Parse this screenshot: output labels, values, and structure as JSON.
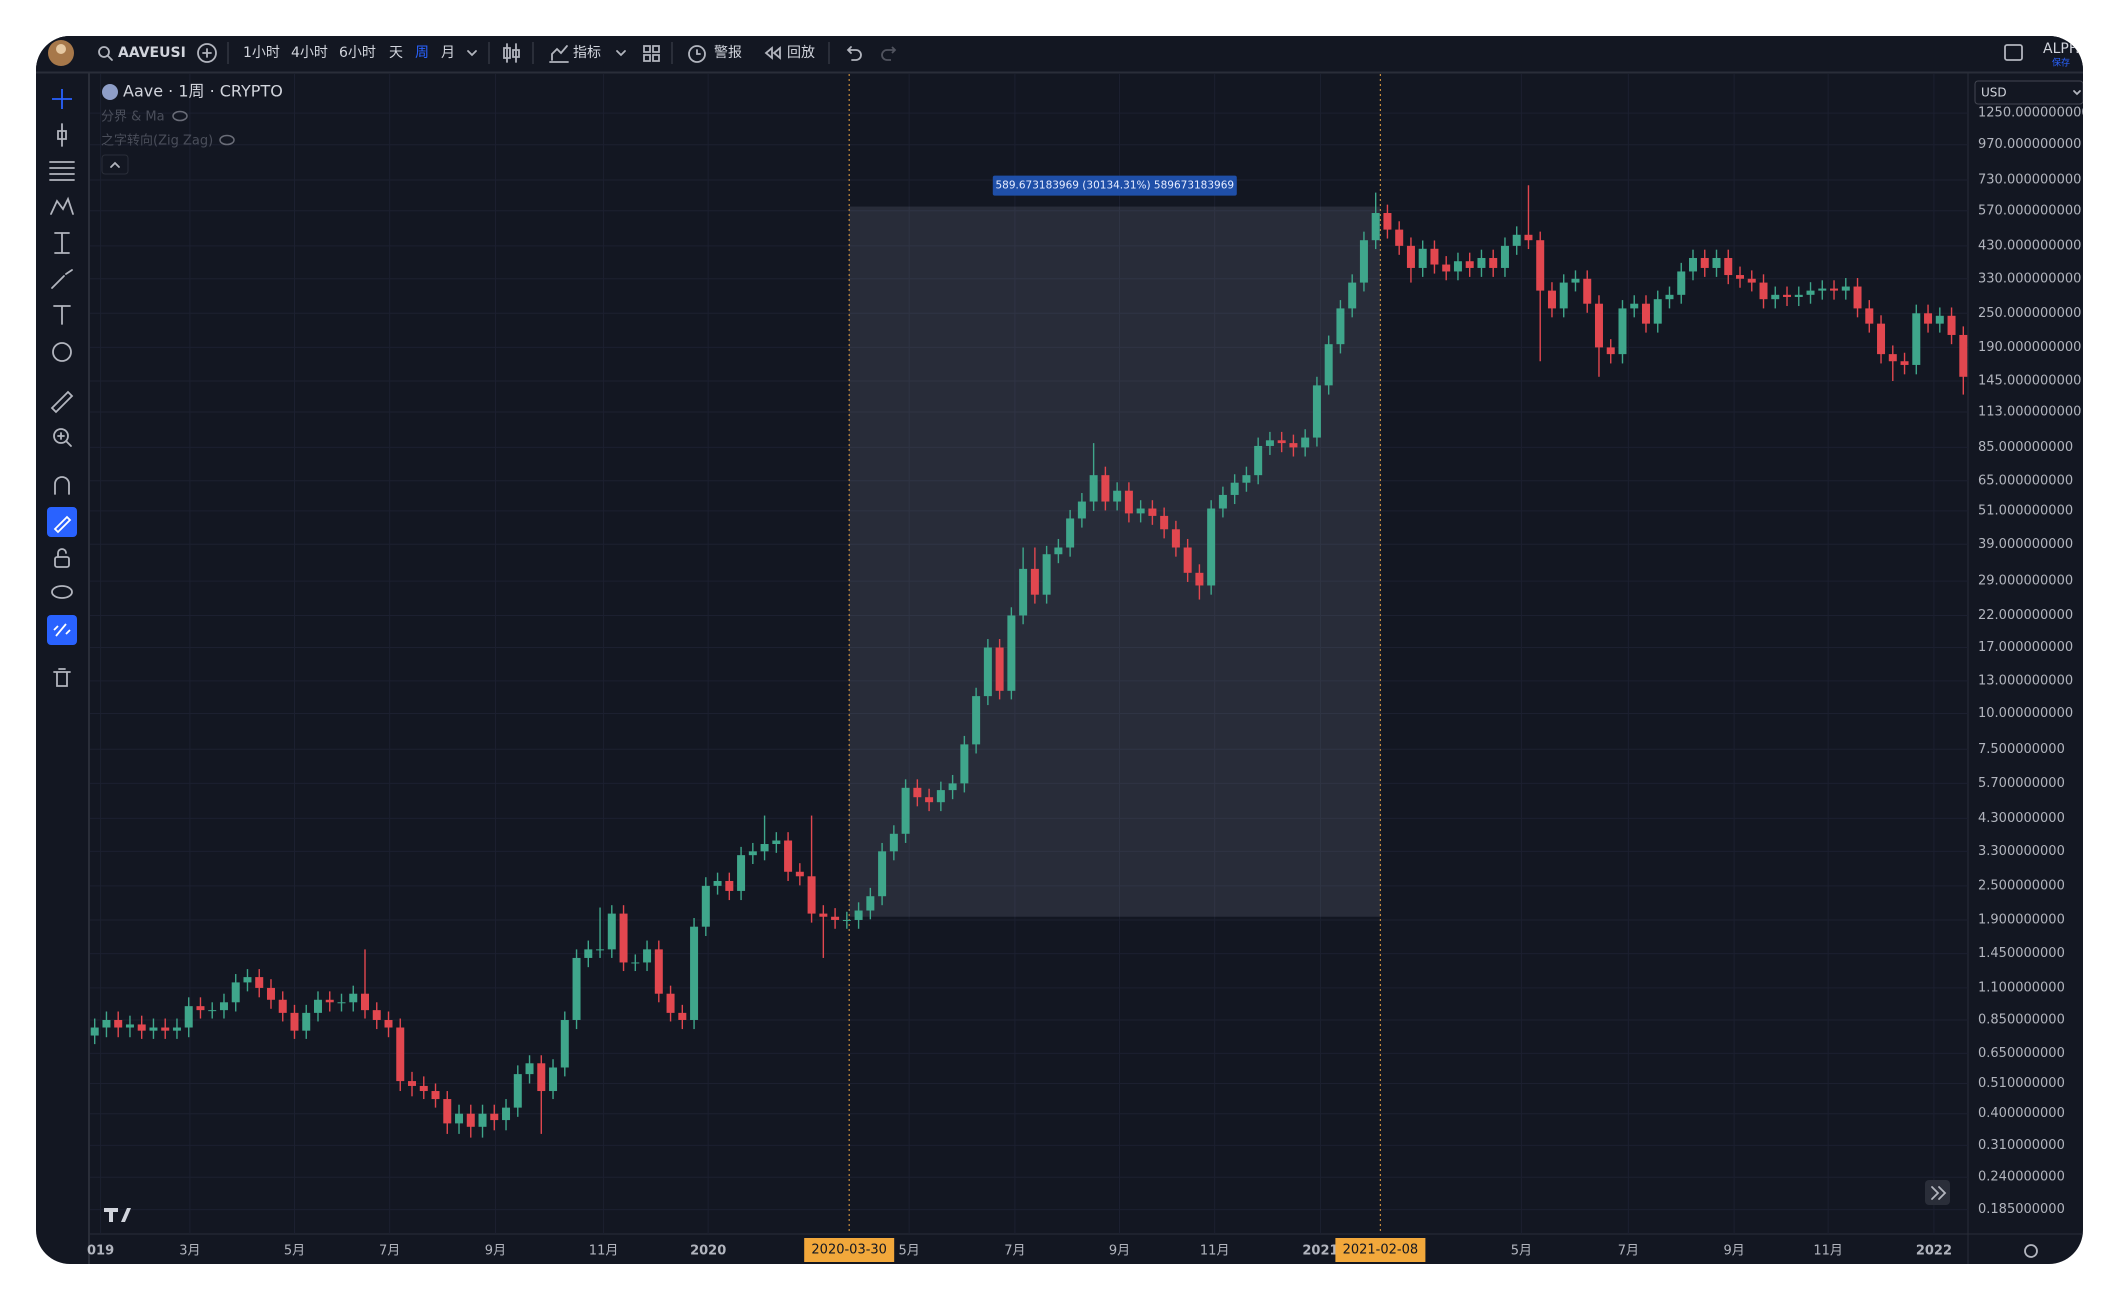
{
  "toolbar": {
    "symbol": "AAVEUSI",
    "intervals": [
      "1小时",
      "4小时",
      "6小时",
      "天",
      "周",
      "月"
    ],
    "indicators": "指标",
    "alert": "警报",
    "replay": "回放",
    "account": "ALPH",
    "save": "保存"
  },
  "legend": {
    "title": "Aave · 1周 · CRYPTO",
    "indicators": [
      "分界 & Ma",
      "之字转向(Zig Zag)"
    ]
  },
  "currency": "USD",
  "chart_data": {
    "type": "candlestick",
    "log_scale": true,
    "grid": true,
    "colors": {
      "up": "#3fa68b",
      "down": "#e2474f"
    },
    "xlim": [
      -0.4,
      159.4
    ],
    "xticks": [
      {
        "value": 0.5,
        "label": "019"
      },
      {
        "value": 8.1,
        "label": "3月"
      },
      {
        "value": 17.0,
        "label": "5月"
      },
      {
        "value": 25.1,
        "label": "7月"
      },
      {
        "value": 34.1,
        "label": "9月"
      },
      {
        "value": 43.3,
        "label": "11月"
      },
      {
        "value": 52.2,
        "label": "2020"
      },
      {
        "value": 69.3,
        "label": "5月"
      },
      {
        "value": 78.3,
        "label": "7月"
      },
      {
        "value": 87.2,
        "label": "9月"
      },
      {
        "value": 95.3,
        "label": "11月"
      },
      {
        "value": 104.3,
        "label": "2021"
      },
      {
        "value": 121.4,
        "label": "5月"
      },
      {
        "value": 130.5,
        "label": "7月"
      },
      {
        "value": 139.5,
        "label": "9月"
      },
      {
        "value": 147.5,
        "label": "11月"
      },
      {
        "value": 156.5,
        "label": "2022"
      }
    ],
    "ylim": [
      0.152,
      1713
    ],
    "yticks": [
      {
        "value": 1250,
        "label": "1250.000000000"
      },
      {
        "value": 970,
        "label": "970.000000000"
      },
      {
        "value": 730,
        "label": "730.000000000"
      },
      {
        "value": 570,
        "label": "570.000000000"
      },
      {
        "value": 430,
        "label": "430.000000000"
      },
      {
        "value": 330,
        "label": "330.000000000"
      },
      {
        "value": 250,
        "label": "250.000000000"
      },
      {
        "value": 190,
        "label": "190.000000000"
      },
      {
        "value": 145,
        "label": "145.000000000"
      },
      {
        "value": 113,
        "label": "113.000000000"
      },
      {
        "value": 85,
        "label": "85.000000000"
      },
      {
        "value": 65,
        "label": "65.000000000"
      },
      {
        "value": 51,
        "label": "51.000000000"
      },
      {
        "value": 39,
        "label": "39.000000000"
      },
      {
        "value": 29,
        "label": "29.000000000"
      },
      {
        "value": 22,
        "label": "22.000000000"
      },
      {
        "value": 17,
        "label": "17.000000000"
      },
      {
        "value": 13,
        "label": "13.000000000"
      },
      {
        "value": 10,
        "label": "10.000000000"
      },
      {
        "value": 7.5,
        "label": "7.500000000"
      },
      {
        "value": 5.7,
        "label": "5.700000000"
      },
      {
        "value": 4.3,
        "label": "4.300000000"
      },
      {
        "value": 3.3,
        "label": "3.300000000"
      },
      {
        "value": 2.5,
        "label": "2.500000000"
      },
      {
        "value": 1.9,
        "label": "1.900000000"
      },
      {
        "value": 1.45,
        "label": "1.450000000"
      },
      {
        "value": 1.1,
        "label": "1.100000000"
      },
      {
        "value": 0.85,
        "label": "0.850000000"
      },
      {
        "value": 0.65,
        "label": "0.650000000"
      },
      {
        "value": 0.51,
        "label": "0.510000000"
      },
      {
        "value": 0.4,
        "label": "0.400000000"
      },
      {
        "value": 0.31,
        "label": "0.310000000"
      },
      {
        "value": 0.24,
        "label": "0.240000000"
      },
      {
        "value": 0.185,
        "label": "0.185000000"
      }
    ],
    "ruler": {
      "start": {
        "value": 64.2,
        "label": "2020-03-30"
      },
      "end": {
        "value": 109.4,
        "label": "2021-02-08"
      },
      "low": 1.95,
      "high": 589.673183969,
      "label": "589.673183969 (30134.31%) 589673183969"
    },
    "open": [
      0.75,
      0.8,
      0.85,
      0.8,
      0.82,
      0.78,
      0.8,
      0.78,
      0.8,
      0.95,
      0.92,
      0.92,
      0.98,
      1.15,
      1.2,
      1.1,
      1.0,
      0.9,
      0.78,
      0.9,
      1.0,
      0.98,
      0.98,
      1.05,
      0.92,
      0.85,
      0.8,
      0.52,
      0.5,
      0.48,
      0.45,
      0.37,
      0.4,
      0.36,
      0.4,
      0.38,
      0.42,
      0.55,
      0.6,
      0.48,
      0.58,
      0.85,
      1.4,
      1.5,
      1.5,
      2.0,
      1.35,
      1.35,
      1.5,
      1.05,
      0.9,
      0.85,
      1.8,
      2.5,
      2.6,
      2.4,
      3.2,
      3.3,
      3.5,
      3.6,
      2.8,
      2.7,
      2.0,
      1.95,
      1.9,
      1.9,
      2.05,
      2.3,
      3.3,
      3.8,
      5.5,
      5.1,
      4.9,
      5.4,
      5.7,
      7.8,
      11.5,
      17.0,
      12.0,
      22.0,
      32.0,
      26,
      36,
      38,
      48,
      55,
      68,
      55,
      60,
      50,
      52,
      49,
      44,
      38,
      31,
      28,
      52,
      58,
      64,
      68,
      86,
      90,
      88,
      85,
      92,
      140,
      195,
      260,
      320,
      450,
      560,
      490,
      430,
      360,
      420,
      370,
      350,
      380,
      360,
      390,
      360,
      430,
      470,
      450,
      300,
      260,
      320,
      330,
      270,
      190,
      180,
      260,
      270,
      230,
      280,
      290,
      350,
      390,
      360,
      390,
      340,
      330,
      320,
      280,
      290,
      285,
      290,
      300,
      305,
      300,
      310,
      260,
      230,
      180,
      170,
      165,
      250,
      230,
      245,
      210
    ],
    "high": [
      0.86,
      0.91,
      0.91,
      0.88,
      0.88,
      0.86,
      0.86,
      0.86,
      1.02,
      1.02,
      0.98,
      1.05,
      1.23,
      1.28,
      1.28,
      1.18,
      1.07,
      0.96,
      0.96,
      1.07,
      1.07,
      1.05,
      1.12,
      1.5,
      0.98,
      0.91,
      0.86,
      0.56,
      0.54,
      0.51,
      0.48,
      0.43,
      0.43,
      0.43,
      0.43,
      0.45,
      0.59,
      0.64,
      0.64,
      0.62,
      0.91,
      1.5,
      1.61,
      2.1,
      2.14,
      2.14,
      1.44,
      1.61,
      1.61,
      1.12,
      0.96,
      1.93,
      2.68,
      2.78,
      2.78,
      3.42,
      3.53,
      4.4,
      3.85,
      3.85,
      3.0,
      4.4,
      2.14,
      2.09,
      2.03,
      2.19,
      2.46,
      3.53,
      4.07,
      5.89,
      5.89,
      5.46,
      5.78,
      6.1,
      8.35,
      12.3,
      18.2,
      18.2,
      23.5,
      38.0,
      38.0,
      38.5,
      40.7,
      51.4,
      58.9,
      88,
      72.8,
      64.2,
      64.2,
      55.6,
      55.6,
      52.4,
      47.1,
      40.7,
      33.2,
      55.6,
      62,
      68.5,
      72.8,
      92,
      96.3,
      96.3,
      94.2,
      98.4,
      150,
      209,
      278,
      342,
      482,
      660,
      599,
      524,
      460,
      449,
      449,
      396,
      407,
      407,
      417,
      417,
      460,
      503,
      700,
      482,
      321,
      342,
      353,
      353,
      289,
      203,
      278,
      289,
      289,
      300,
      310,
      375,
      417,
      417,
      417,
      417,
      364,
      353,
      342,
      310,
      310,
      310,
      321,
      326,
      326,
      332,
      332,
      278,
      246,
      193,
      182,
      268,
      268,
      262,
      262,
      225
    ],
    "low": [
      0.7,
      0.74,
      0.74,
      0.74,
      0.73,
      0.73,
      0.73,
      0.73,
      0.74,
      0.86,
      0.86,
      0.86,
      0.91,
      1.07,
      1.02,
      0.93,
      0.84,
      0.73,
      0.73,
      0.84,
      0.91,
      0.91,
      0.91,
      0.86,
      0.79,
      0.74,
      0.48,
      0.46,
      0.45,
      0.42,
      0.34,
      0.34,
      0.33,
      0.33,
      0.35,
      0.35,
      0.39,
      0.51,
      0.34,
      0.45,
      0.54,
      0.79,
      1.3,
      1.4,
      1.4,
      1.26,
      1.26,
      1.26,
      0.98,
      0.84,
      0.79,
      0.79,
      1.67,
      2.33,
      2.23,
      2.23,
      2.98,
      3.07,
      3.26,
      2.6,
      2.51,
      1.86,
      1.4,
      1.77,
      1.77,
      1.77,
      1.91,
      2.14,
      3.07,
      3.53,
      4.74,
      4.56,
      4.56,
      5.02,
      5.3,
      7.25,
      10.7,
      11.2,
      11.2,
      20.5,
      24.2,
      24.2,
      33.5,
      35.3,
      44.6,
      51,
      51.2,
      51.2,
      46.5,
      46.5,
      45.6,
      40.9,
      35.3,
      28.8,
      25,
      26,
      48.4,
      53.9,
      59.5,
      63.2,
      80,
      81.8,
      79,
      79,
      85.6,
      130,
      181,
      242,
      298,
      419,
      456,
      400,
      320,
      335,
      344,
      326,
      326,
      335,
      335,
      335,
      335,
      400,
      419,
      170,
      242,
      242,
      298,
      251,
      150,
      167,
      167,
      242,
      214,
      214,
      260,
      270,
      326,
      335,
      335,
      316,
      307,
      298,
      260,
      260,
      265,
      265,
      270,
      279,
      279,
      279,
      242,
      214,
      167,
      145,
      153,
      153,
      214,
      214,
      195,
      130
    ],
    "close": [
      0.8,
      0.85,
      0.8,
      0.82,
      0.78,
      0.8,
      0.78,
      0.8,
      0.95,
      0.92,
      0.92,
      0.98,
      1.15,
      1.2,
      1.1,
      1.0,
      0.9,
      0.78,
      0.9,
      1.0,
      0.98,
      0.98,
      1.05,
      0.92,
      0.85,
      0.8,
      0.52,
      0.5,
      0.48,
      0.45,
      0.37,
      0.4,
      0.36,
      0.4,
      0.38,
      0.42,
      0.55,
      0.6,
      0.48,
      0.58,
      0.85,
      1.4,
      1.5,
      1.5,
      2.0,
      1.35,
      1.35,
      1.5,
      1.05,
      0.9,
      0.85,
      1.8,
      2.5,
      2.6,
      2.4,
      3.2,
      3.3,
      3.5,
      3.6,
      2.8,
      2.7,
      2.0,
      1.95,
      1.9,
      1.9,
      2.05,
      2.3,
      3.3,
      3.8,
      5.5,
      5.1,
      4.9,
      5.4,
      5.7,
      7.8,
      11.5,
      17.0,
      12.0,
      22.0,
      32.0,
      26,
      36,
      38,
      48,
      55,
      68,
      55,
      60,
      50,
      52,
      49,
      44,
      38,
      31,
      28,
      52,
      58,
      64,
      68,
      86,
      90,
      88,
      85,
      92,
      140,
      195,
      260,
      320,
      450,
      560,
      490,
      430,
      360,
      420,
      370,
      350,
      380,
      360,
      390,
      360,
      430,
      470,
      450,
      300,
      260,
      320,
      330,
      270,
      190,
      180,
      260,
      270,
      230,
      280,
      290,
      350,
      390,
      360,
      390,
      340,
      330,
      320,
      280,
      290,
      285,
      290,
      300,
      305,
      300,
      310,
      260,
      230,
      180,
      170,
      165,
      250,
      230,
      245,
      210,
      150
    ]
  }
}
